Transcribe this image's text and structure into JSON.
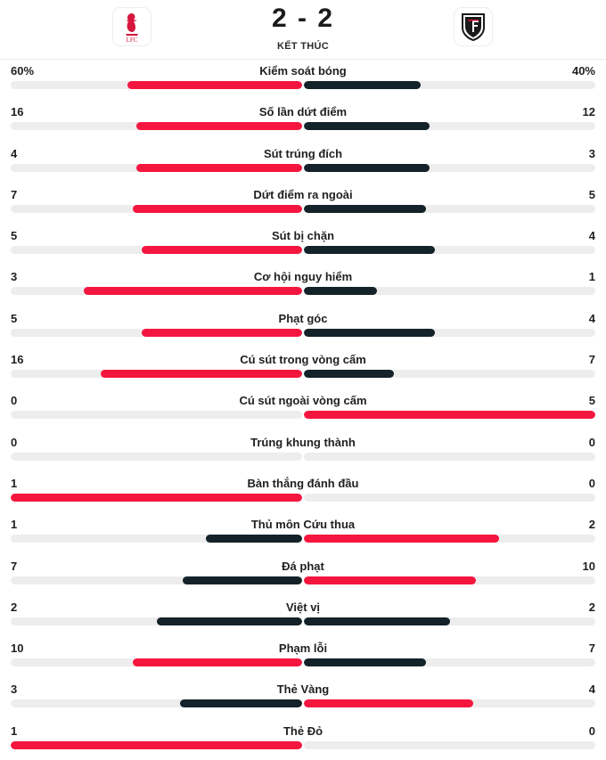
{
  "match": {
    "score": "2 - 2",
    "status": "KẾT THÚC",
    "home_crest_text": "LFC",
    "colors": {
      "lead": "#f5163f",
      "trail": "#142229",
      "track": "#ededed"
    }
  },
  "stats": [
    {
      "label": "Kiểm soát bóng",
      "home": "60%",
      "away": "40%",
      "home_frac": 0.6,
      "away_frac": 0.4,
      "lead": "home"
    },
    {
      "label": "Số lần dứt điểm",
      "home": "16",
      "away": "12",
      "home_frac": 0.57,
      "away_frac": 0.43,
      "lead": "home"
    },
    {
      "label": "Sút trúng đích",
      "home": "4",
      "away": "3",
      "home_frac": 0.57,
      "away_frac": 0.43,
      "lead": "home"
    },
    {
      "label": "Dứt điểm ra ngoài",
      "home": "7",
      "away": "5",
      "home_frac": 0.58,
      "away_frac": 0.42,
      "lead": "home"
    },
    {
      "label": "Sút bị chặn",
      "home": "5",
      "away": "4",
      "home_frac": 0.55,
      "away_frac": 0.45,
      "lead": "home"
    },
    {
      "label": "Cơ hội nguy hiểm",
      "home": "3",
      "away": "1",
      "home_frac": 0.75,
      "away_frac": 0.25,
      "lead": "home"
    },
    {
      "label": "Phạt góc",
      "home": "5",
      "away": "4",
      "home_frac": 0.55,
      "away_frac": 0.45,
      "lead": "home"
    },
    {
      "label": "Cú sút trong vòng cấm",
      "home": "16",
      "away": "7",
      "home_frac": 0.69,
      "away_frac": 0.31,
      "lead": "home"
    },
    {
      "label": "Cú sút ngoài vòng cấm",
      "home": "0",
      "away": "5",
      "home_frac": 0,
      "away_frac": 1,
      "lead": "away"
    },
    {
      "label": "Trúng khung thành",
      "home": "0",
      "away": "0",
      "home_frac": 0,
      "away_frac": 0,
      "lead": "none"
    },
    {
      "label": "Bàn thắng đánh đầu",
      "home": "1",
      "away": "0",
      "home_frac": 1,
      "away_frac": 0,
      "lead": "home"
    },
    {
      "label": "Thủ môn Cứu thua",
      "home": "1",
      "away": "2",
      "home_frac": 0.33,
      "away_frac": 0.67,
      "lead": "away"
    },
    {
      "label": "Đá phạt",
      "home": "7",
      "away": "10",
      "home_frac": 0.41,
      "away_frac": 0.59,
      "lead": "away"
    },
    {
      "label": "Việt vị",
      "home": "2",
      "away": "2",
      "home_frac": 0.5,
      "away_frac": 0.5,
      "lead": "none"
    },
    {
      "label": "Phạm lỗi",
      "home": "10",
      "away": "7",
      "home_frac": 0.58,
      "away_frac": 0.42,
      "lead": "home"
    },
    {
      "label": "Thẻ Vàng",
      "home": "3",
      "away": "4",
      "home_frac": 0.42,
      "away_frac": 0.58,
      "lead": "away"
    },
    {
      "label": "Thẻ Đỏ",
      "home": "1",
      "away": "0",
      "home_frac": 1,
      "away_frac": 0,
      "lead": "home"
    }
  ]
}
